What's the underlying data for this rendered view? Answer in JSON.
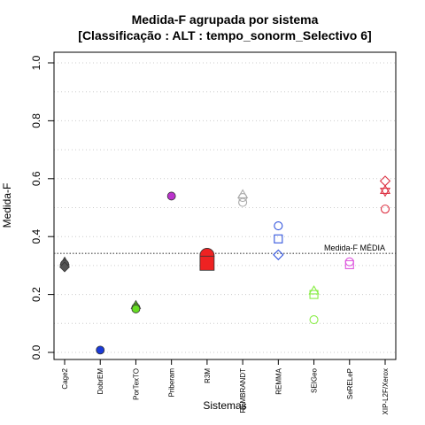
{
  "chart_data": {
    "type": "scatter",
    "title": "Medida-F agrupada por sistema",
    "subtitle": "[Classificação : ALT : tempo_sonorm_Selectivo 6]",
    "xlabel": "Sistemas",
    "ylabel": "Medida-F",
    "ylim": [
      0,
      1
    ],
    "yticks": [
      "0.0",
      "0.2",
      "0.4",
      "0.6",
      "0.8",
      "1.0"
    ],
    "grid": true,
    "categories": [
      "Cage2",
      "DobrEM",
      "PorTexTO",
      "Priberam",
      "R3M",
      "REMBRANDT",
      "REMMA",
      "SEIGeo",
      "SeRELeP",
      "XIP-L2F/Xerox"
    ],
    "reference_line": {
      "label": "Medida-F MÉDIA",
      "value": 0.342
    },
    "series": [
      {
        "category": "Cage2",
        "color": "#555555",
        "points": [
          {
            "value": 0.313,
            "shape": "triangle-filled"
          },
          {
            "value": 0.305,
            "shape": "circle-filled"
          },
          {
            "value": 0.295,
            "shape": "diamond-filled"
          }
        ]
      },
      {
        "category": "DobrEM",
        "color": "#1a3ad8",
        "points": [
          {
            "value": 0.008,
            "shape": "circle-filled"
          }
        ]
      },
      {
        "category": "PorTexTO",
        "color": "#66dd22",
        "points": [
          {
            "value": 0.163,
            "shape": "triangle-filled"
          },
          {
            "value": 0.155,
            "shape": "circle-filled"
          },
          {
            "value": 0.15,
            "shape": "circle-filled"
          }
        ]
      },
      {
        "category": "Priberam",
        "color": "#bb33cc",
        "points": [
          {
            "value": 0.54,
            "shape": "circle-filled"
          }
        ]
      },
      {
        "category": "R3M",
        "color": "#ee2222",
        "points": [
          {
            "value": 0.335,
            "shape": "circle-filled-large"
          },
          {
            "value": 0.308,
            "shape": "square-filled-large"
          }
        ]
      },
      {
        "category": "REMBRANDT",
        "color": "#aaaaaa",
        "points": [
          {
            "value": 0.545,
            "shape": "triangle-open"
          },
          {
            "value": 0.535,
            "shape": "circle-open"
          },
          {
            "value": 0.518,
            "shape": "circle-open"
          }
        ]
      },
      {
        "category": "REMMA",
        "color": "#3355dd",
        "points": [
          {
            "value": 0.437,
            "shape": "circle-open"
          },
          {
            "value": 0.392,
            "shape": "square-open"
          },
          {
            "value": 0.337,
            "shape": "diamond-open"
          }
        ]
      },
      {
        "category": "SEIGeo",
        "color": "#88ee44",
        "points": [
          {
            "value": 0.213,
            "shape": "triangle-open"
          },
          {
            "value": 0.2,
            "shape": "square-open"
          },
          {
            "value": 0.113,
            "shape": "circle-open"
          }
        ]
      },
      {
        "category": "SeRELeP",
        "color": "#dd55dd",
        "points": [
          {
            "value": 0.313,
            "shape": "circle-open"
          },
          {
            "value": 0.303,
            "shape": "square-open"
          }
        ]
      },
      {
        "category": "XIP-L2F/Xerox",
        "color": "#dd3344",
        "points": [
          {
            "value": 0.592,
            "shape": "diamond-open"
          },
          {
            "value": 0.558,
            "shape": "star-open"
          },
          {
            "value": 0.495,
            "shape": "circle-open"
          }
        ]
      }
    ]
  }
}
